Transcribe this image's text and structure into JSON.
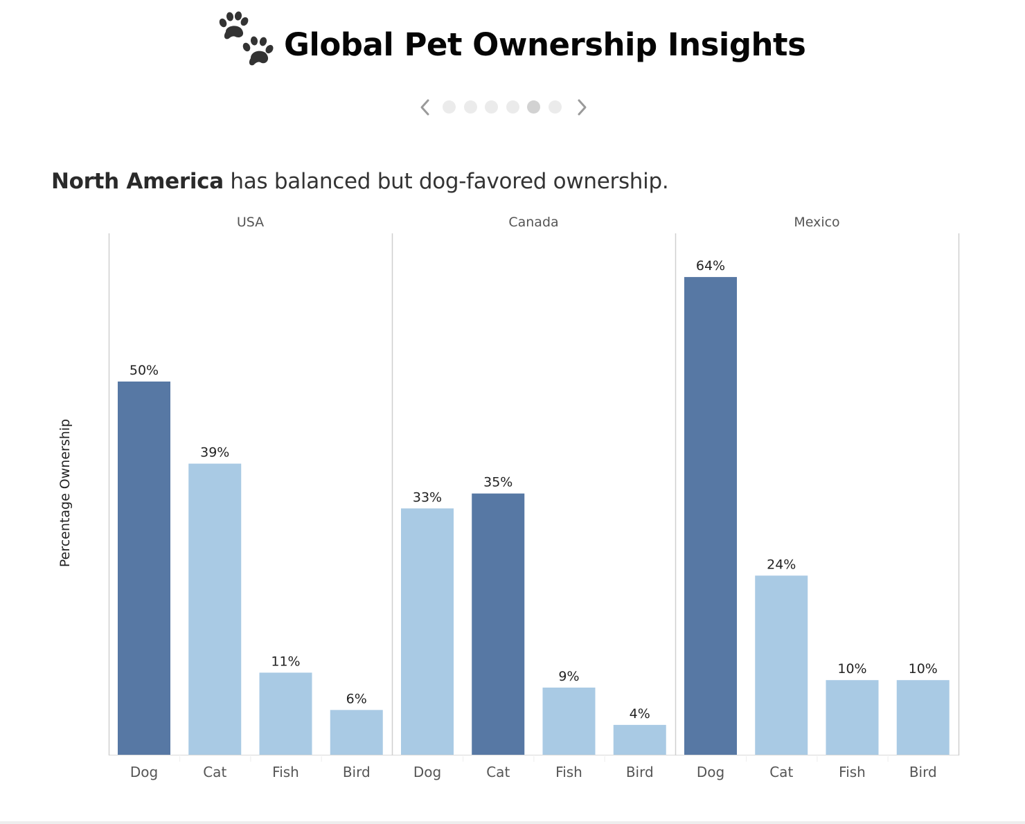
{
  "header": {
    "title": "Global Pet Ownership Insights",
    "icon": "paw-prints-icon"
  },
  "pager": {
    "dot_count": 6,
    "active_index": 4,
    "prev_icon": "chevron-left-icon",
    "next_icon": "chevron-right-icon"
  },
  "subtitle": {
    "bold": "North America",
    "rest": " has balanced but dog-favored ownership."
  },
  "chart_data": {
    "type": "bar",
    "ylabel": "Percentage Ownership",
    "ylim": [
      0,
      70
    ],
    "grid": false,
    "legend": "none",
    "colors": {
      "highlight": "#5778a4",
      "normal": "#a9cae4"
    },
    "panels": [
      {
        "name": "USA",
        "categories": [
          "Dog",
          "Cat",
          "Fish",
          "Bird"
        ],
        "values": [
          50,
          39,
          11,
          6
        ],
        "labels": [
          "50%",
          "39%",
          "11%",
          "6%"
        ],
        "highlight": "Dog"
      },
      {
        "name": "Canada",
        "categories": [
          "Dog",
          "Cat",
          "Fish",
          "Bird"
        ],
        "values": [
          33,
          35,
          9,
          4
        ],
        "labels": [
          "33%",
          "35%",
          "9%",
          "4%"
        ],
        "highlight": "Cat"
      },
      {
        "name": "Mexico",
        "categories": [
          "Dog",
          "Cat",
          "Fish",
          "Bird"
        ],
        "values": [
          64,
          24,
          10,
          10
        ],
        "labels": [
          "64%",
          "24%",
          "10%",
          "10%"
        ],
        "highlight": "Dog"
      }
    ]
  }
}
